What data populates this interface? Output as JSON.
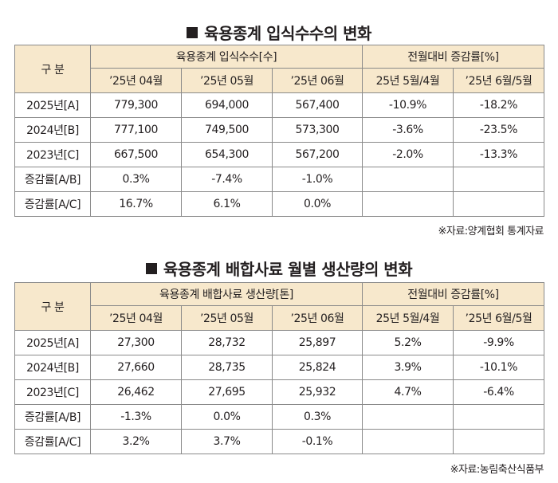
{
  "table1": {
    "title": "육용종계 입식수수의 변화",
    "header": {
      "category": "구 분",
      "group1": "육용종계 입식수수[수]",
      "group2": "전월대비 증감률[%]",
      "sub": [
        "’25년 04월",
        "’25년 05월",
        "’25년 06월",
        "25년 5월/4월",
        "’25년 6월/5월"
      ]
    },
    "rows": [
      {
        "label": "2025년[A]",
        "cells": [
          "779,300",
          "694,000",
          "567,400",
          "-10.9%",
          "-18.2%"
        ]
      },
      {
        "label": "2024년[B]",
        "cells": [
          "777,100",
          "749,500",
          "573,300",
          "-3.6%",
          "-23.5%"
        ]
      },
      {
        "label": "2023년[C]",
        "cells": [
          "667,500",
          "654,300",
          "567,200",
          "-2.0%",
          "-13.3%"
        ]
      },
      {
        "label": "증감률[A/B]",
        "cells": [
          "0.3%",
          "-7.4%",
          "-1.0%",
          "",
          ""
        ]
      },
      {
        "label": "증감률[A/C]",
        "cells": [
          "16.7%",
          "6.1%",
          "0.0%",
          "",
          ""
        ]
      }
    ],
    "source": "※자료:양계협회 통계자료"
  },
  "table2": {
    "title": "육용종계 배합사료 월별 생산량의 변화",
    "header": {
      "category": "구 분",
      "group1": "육용종계 배합사료 생산량[톤]",
      "group2": "전월대비 증감률[%]",
      "sub": [
        "’25년 04월",
        "’25년 05월",
        "’25년 06월",
        "25년 5월/4월",
        "’25년 6월/5월"
      ]
    },
    "rows": [
      {
        "label": "2025년[A]",
        "cells": [
          "27,300",
          "28,732",
          "25,897",
          "5.2%",
          "-9.9%"
        ]
      },
      {
        "label": "2024년[B]",
        "cells": [
          "27,660",
          "28,735",
          "25,824",
          "3.9%",
          "-10.1%"
        ]
      },
      {
        "label": "2023년[C]",
        "cells": [
          "26,462",
          "27,695",
          "25,932",
          "4.7%",
          "-6.4%"
        ]
      },
      {
        "label": "증감률[A/B]",
        "cells": [
          "-1.3%",
          "0.0%",
          "0.3%",
          "",
          ""
        ]
      },
      {
        "label": "증감률[A/C]",
        "cells": [
          "3.2%",
          "3.7%",
          "-0.1%",
          "",
          ""
        ]
      }
    ],
    "source": "※자료:농림축산식품부"
  }
}
